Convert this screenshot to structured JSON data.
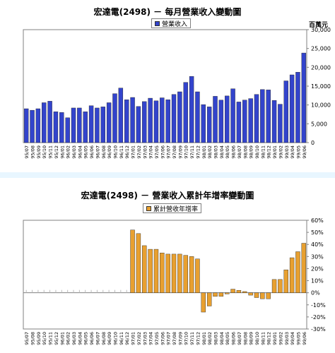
{
  "charts": [
    {
      "title": "宏達電(2498) － 每月營業收入變動圖",
      "legend_label": "營業收入",
      "unit_label": "百萬元",
      "colors": {
        "bar": "#3344cc",
        "plot_bg": "#ffffff",
        "grid": "#c0c0c0"
      }
    },
    {
      "title": "宏達電(2498) －  營業收入累計年增率變動圖",
      "legend_label": "累計營收年增率",
      "colors": {
        "bar": "#e8a030",
        "plot_bg": "#ffffff",
        "grid": "#c0c0c0"
      }
    }
  ],
  "chart_data": [
    {
      "type": "bar",
      "title": "宏達電(2498) － 每月營業收入變動圖",
      "ylabel": "百萬元",
      "ylim": [
        0,
        30000
      ],
      "yticks": [
        0,
        5000,
        10000,
        15000,
        20000,
        25000,
        30000
      ],
      "grid": false,
      "legend": "top-center",
      "categories": [
        "95/07",
        "95/08",
        "95/09",
        "95/10",
        "95/11",
        "95/12",
        "96/01",
        "96/02",
        "96/03",
        "96/04",
        "96/05",
        "96/06",
        "96/07",
        "96/08",
        "96/09",
        "96/10",
        "96/11",
        "96/12",
        "97/01",
        "97/02",
        "97/03",
        "97/04",
        "97/05",
        "97/06",
        "97/07",
        "97/08",
        "97/09",
        "97/10",
        "97/11",
        "97/12",
        "98/01",
        "98/02",
        "98/03",
        "98/04",
        "98/05",
        "98/06",
        "98/07",
        "98/08",
        "98/09",
        "98/10",
        "98/11",
        "98/12",
        "99/01",
        "99/02",
        "99/03",
        "99/04",
        "99/05",
        "99/06"
      ],
      "series": [
        {
          "name": "營業收入",
          "values": [
            9000,
            8600,
            9000,
            10600,
            11000,
            8200,
            8000,
            6600,
            9200,
            9200,
            8200,
            9800,
            9200,
            9500,
            10600,
            13000,
            14500,
            11400,
            12000,
            9600,
            10900,
            11800,
            11100,
            11900,
            11400,
            12800,
            13500,
            16000,
            17600,
            13500,
            10100,
            9500,
            12300,
            11300,
            12400,
            14300,
            10800,
            11300,
            11700,
            12800,
            14100,
            14000,
            11200,
            10200,
            16400,
            18000,
            18700,
            23800
          ]
        }
      ]
    },
    {
      "type": "bar",
      "title": "宏達電(2498) －  營業收入累計年增率變動圖",
      "ylabel": "",
      "ylim": [
        -30,
        60
      ],
      "yticks": [
        -30,
        -20,
        -10,
        0,
        10,
        20,
        30,
        40,
        50,
        60
      ],
      "ytick_format": "percent",
      "grid": false,
      "legend": "top-center",
      "categories": [
        "95/07",
        "95/08",
        "95/09",
        "95/10",
        "95/11",
        "95/12",
        "96/01",
        "96/02",
        "96/03",
        "96/04",
        "96/05",
        "96/06",
        "96/07",
        "96/08",
        "96/09",
        "96/10",
        "96/11",
        "96/12",
        "97/01",
        "97/02",
        "97/03",
        "97/04",
        "97/05",
        "97/06",
        "97/07",
        "97/08",
        "97/09",
        "97/10",
        "97/11",
        "97/12",
        "98/01",
        "98/02",
        "98/03",
        "98/04",
        "98/05",
        "98/06",
        "98/07",
        "98/08",
        "98/09",
        "98/10",
        "98/11",
        "98/12",
        "99/01",
        "99/02",
        "99/03",
        "99/04",
        "99/05",
        "99/06"
      ],
      "series": [
        {
          "name": "累計營收年增率",
          "values": [
            0,
            0,
            0,
            0,
            0,
            0,
            0,
            0,
            0,
            0,
            0,
            0,
            0,
            0,
            0,
            0,
            0,
            0,
            52,
            49,
            39,
            36,
            36,
            33,
            32,
            32,
            32,
            31,
            30,
            28,
            -16,
            -11,
            -3,
            -3,
            -1,
            3,
            2,
            1,
            -2,
            -4,
            -5,
            -5,
            11,
            11,
            19,
            29,
            34,
            41
          ]
        }
      ]
    }
  ]
}
